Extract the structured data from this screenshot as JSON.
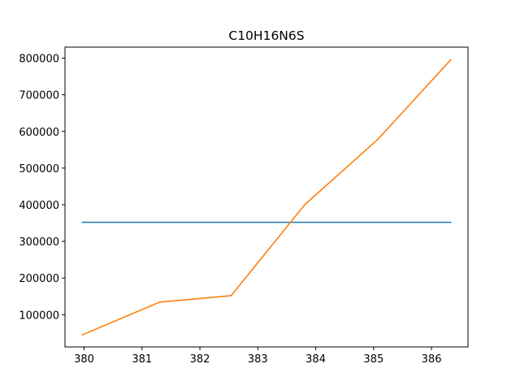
{
  "chart_data": {
    "type": "line",
    "title": "C10H16N6S",
    "xlabel": "",
    "ylabel": "",
    "xlim": [
      379.67,
      386.63
    ],
    "ylim": [
      12000,
      830000
    ],
    "xticks": [
      380,
      381,
      382,
      383,
      384,
      385,
      386
    ],
    "yticks": [
      100000,
      200000,
      300000,
      400000,
      500000,
      600000,
      700000,
      800000
    ],
    "grid": false,
    "series": [
      {
        "color": "#1f77b4",
        "x": [
          379.97,
          386.33
        ],
        "y": [
          352000,
          352000
        ]
      },
      {
        "color": "#ff7f0e",
        "x": [
          379.97,
          381.3,
          382.54,
          383.81,
          385.07,
          386.33
        ],
        "y": [
          45000,
          134000,
          152000,
          400000,
          578000,
          795000
        ]
      }
    ]
  }
}
